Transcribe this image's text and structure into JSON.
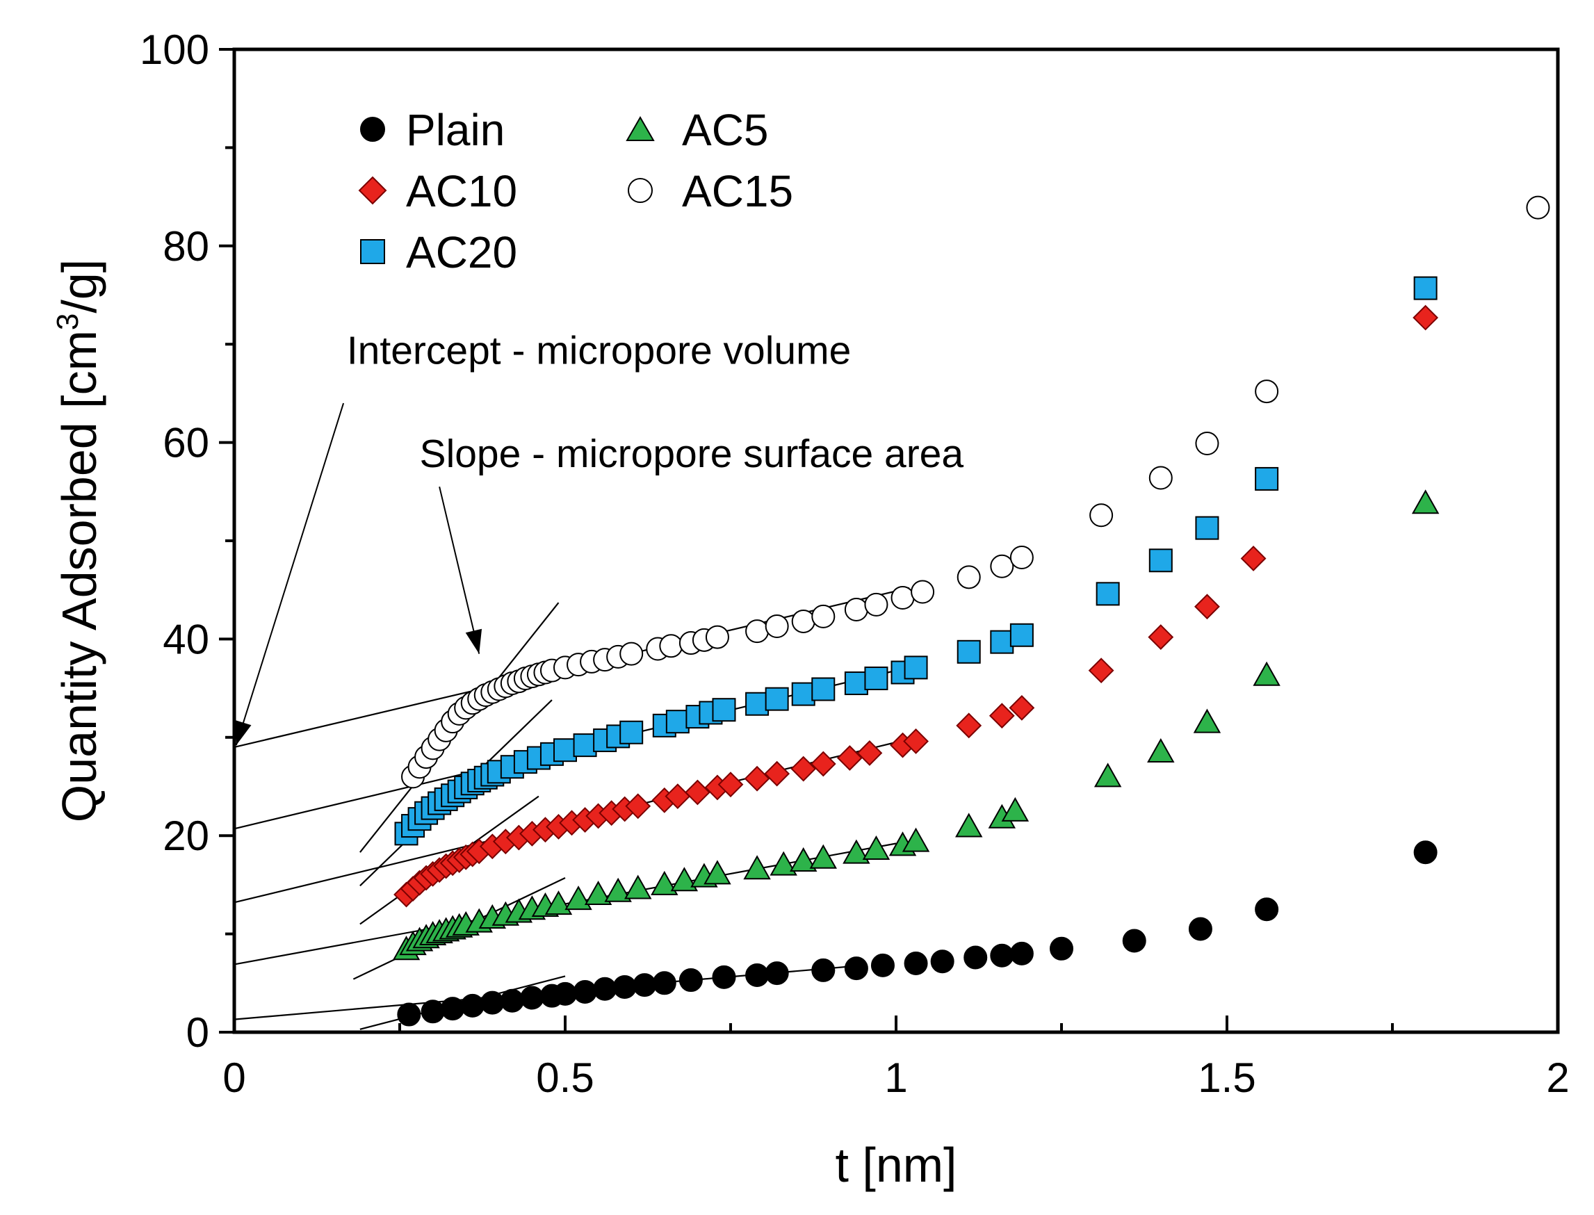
{
  "chart_data": {
    "type": "scatter",
    "title": "",
    "xlabel": "t [nm]",
    "ylabel_main": "Quantity Adsorbed [cm",
    "ylabel_sup": "3",
    "ylabel_tail": "/g]",
    "xlim": [
      0,
      2
    ],
    "ylim": [
      0,
      100
    ],
    "x_ticks": [
      0,
      0.5,
      1,
      1.5,
      2
    ],
    "x_tick_labels": [
      "0",
      "0.5",
      "1",
      "1.5",
      "2"
    ],
    "y_ticks": [
      0,
      20,
      40,
      60,
      80,
      100
    ],
    "y_tick_labels": [
      "0",
      "20",
      "40",
      "60",
      "80",
      "100"
    ],
    "legend_position": "top-left",
    "series": [
      {
        "name": "Plain",
        "marker": "circle",
        "fill": "#000000",
        "stroke": "#000000",
        "x": [
          0.264,
          0.3,
          0.33,
          0.36,
          0.39,
          0.42,
          0.45,
          0.48,
          0.5,
          0.53,
          0.56,
          0.59,
          0.62,
          0.65,
          0.69,
          0.74,
          0.79,
          0.82,
          0.89,
          0.94,
          0.98,
          1.03,
          1.07,
          1.12,
          1.16,
          1.19,
          1.25,
          1.36,
          1.46,
          1.56,
          1.8
        ],
        "y": [
          1.8,
          2.1,
          2.4,
          2.7,
          3.0,
          3.2,
          3.5,
          3.7,
          3.9,
          4.1,
          4.4,
          4.6,
          4.8,
          5.0,
          5.3,
          5.6,
          5.8,
          6.0,
          6.3,
          6.5,
          6.8,
          7.0,
          7.2,
          7.6,
          7.8,
          8.0,
          8.5,
          9.3,
          10.5,
          12.5,
          18.3
        ]
      },
      {
        "name": "AC5",
        "marker": "triangle",
        "fill": "#2db34a",
        "stroke": "#000000",
        "x": [
          0.26,
          0.27,
          0.28,
          0.29,
          0.3,
          0.31,
          0.32,
          0.33,
          0.34,
          0.35,
          0.37,
          0.39,
          0.41,
          0.43,
          0.45,
          0.47,
          0.49,
          0.52,
          0.55,
          0.58,
          0.61,
          0.65,
          0.68,
          0.71,
          0.73,
          0.79,
          0.83,
          0.86,
          0.89,
          0.94,
          0.97,
          1.01,
          1.03,
          1.11,
          1.16,
          1.18,
          1.32,
          1.4,
          1.47,
          1.56,
          1.8
        ],
        "y": [
          8.4,
          8.9,
          9.3,
          9.6,
          9.9,
          10.1,
          10.3,
          10.5,
          10.7,
          10.9,
          11.2,
          11.6,
          11.9,
          12.2,
          12.5,
          12.8,
          13.0,
          13.5,
          14.0,
          14.3,
          14.6,
          15.0,
          15.4,
          15.8,
          16.1,
          16.6,
          17.0,
          17.4,
          17.7,
          18.2,
          18.6,
          19.0,
          19.4,
          20.9,
          21.8,
          22.5,
          26.0,
          28.5,
          31.5,
          36.3,
          53.8
        ]
      },
      {
        "name": "AC10",
        "marker": "diamond",
        "fill": "#e8231d",
        "stroke": "#7a0000",
        "x": [
          0.26,
          0.27,
          0.28,
          0.29,
          0.3,
          0.31,
          0.32,
          0.33,
          0.34,
          0.35,
          0.36,
          0.37,
          0.39,
          0.41,
          0.43,
          0.45,
          0.47,
          0.49,
          0.51,
          0.53,
          0.55,
          0.57,
          0.59,
          0.61,
          0.65,
          0.67,
          0.7,
          0.73,
          0.75,
          0.79,
          0.82,
          0.86,
          0.89,
          0.93,
          0.96,
          1.01,
          1.03,
          1.11,
          1.16,
          1.19,
          1.31,
          1.4,
          1.47,
          1.54,
          1.8
        ],
        "y": [
          14.0,
          14.6,
          15.2,
          15.7,
          16.1,
          16.5,
          16.9,
          17.2,
          17.5,
          17.8,
          18.1,
          18.4,
          18.9,
          19.4,
          19.8,
          20.2,
          20.6,
          20.9,
          21.3,
          21.6,
          22.0,
          22.3,
          22.7,
          23.0,
          23.6,
          24.0,
          24.4,
          24.9,
          25.2,
          25.8,
          26.3,
          26.8,
          27.3,
          27.9,
          28.4,
          29.2,
          29.6,
          31.2,
          32.2,
          33.0,
          36.8,
          40.2,
          43.3,
          48.2,
          72.7
        ]
      },
      {
        "name": "AC20",
        "marker": "square",
        "fill": "#1fa8e8",
        "stroke": "#000000",
        "x": [
          0.26,
          0.27,
          0.28,
          0.29,
          0.3,
          0.31,
          0.32,
          0.33,
          0.34,
          0.35,
          0.36,
          0.37,
          0.38,
          0.39,
          0.4,
          0.42,
          0.44,
          0.46,
          0.48,
          0.5,
          0.53,
          0.56,
          0.58,
          0.6,
          0.65,
          0.67,
          0.7,
          0.72,
          0.74,
          0.79,
          0.82,
          0.86,
          0.89,
          0.94,
          0.97,
          1.01,
          1.03,
          1.11,
          1.16,
          1.19,
          1.32,
          1.4,
          1.47,
          1.56,
          1.8
        ],
        "y": [
          20.2,
          21.0,
          21.7,
          22.3,
          22.8,
          23.3,
          23.7,
          24.1,
          24.5,
          24.9,
          25.3,
          25.6,
          25.9,
          26.2,
          26.5,
          27.0,
          27.5,
          27.9,
          28.3,
          28.7,
          29.2,
          29.7,
          30.1,
          30.5,
          31.2,
          31.6,
          32.1,
          32.5,
          32.8,
          33.4,
          33.9,
          34.4,
          34.9,
          35.5,
          36.0,
          36.6,
          37.1,
          38.7,
          39.7,
          40.4,
          44.6,
          48.0,
          51.3,
          56.3,
          75.7
        ]
      },
      {
        "name": "AC15",
        "marker": "open-circle",
        "fill": "#ffffff",
        "stroke": "#000000",
        "x": [
          0.27,
          0.28,
          0.29,
          0.3,
          0.31,
          0.32,
          0.33,
          0.34,
          0.35,
          0.36,
          0.37,
          0.38,
          0.39,
          0.4,
          0.41,
          0.42,
          0.43,
          0.44,
          0.45,
          0.46,
          0.47,
          0.48,
          0.5,
          0.52,
          0.54,
          0.56,
          0.58,
          0.6,
          0.64,
          0.66,
          0.69,
          0.71,
          0.73,
          0.79,
          0.82,
          0.86,
          0.89,
          0.94,
          0.97,
          1.01,
          1.04,
          1.11,
          1.16,
          1.19,
          1.31,
          1.4,
          1.47,
          1.56,
          1.97
        ],
        "y": [
          26.0,
          27.0,
          28.0,
          28.9,
          29.8,
          30.7,
          31.6,
          32.4,
          33.0,
          33.5,
          33.9,
          34.3,
          34.6,
          34.9,
          35.2,
          35.5,
          35.7,
          36.0,
          36.2,
          36.4,
          36.6,
          36.8,
          37.1,
          37.4,
          37.7,
          37.9,
          38.2,
          38.5,
          39.0,
          39.3,
          39.6,
          39.9,
          40.2,
          40.8,
          41.3,
          41.8,
          42.3,
          43.0,
          43.5,
          44.2,
          44.8,
          46.3,
          47.4,
          48.3,
          52.6,
          56.4,
          59.9,
          65.2,
          83.9
        ]
      }
    ],
    "fit_lines": [
      {
        "name": "AC15 linear fit",
        "x": [
          0,
          1.02
        ],
        "y": [
          29.0,
          45.2
        ]
      },
      {
        "name": "AC20 linear fit",
        "x": [
          0,
          1.0
        ],
        "y": [
          20.7,
          36.8
        ]
      },
      {
        "name": "AC10 linear fit",
        "x": [
          0,
          1.0
        ],
        "y": [
          13.2,
          29.5
        ]
      },
      {
        "name": "AC5 linear fit",
        "x": [
          0,
          1.0
        ],
        "y": [
          6.9,
          19.2
        ]
      },
      {
        "name": "Plain linear fit",
        "x": [
          0,
          0.95
        ],
        "y": [
          1.3,
          6.8
        ]
      },
      {
        "name": "AC15 tangent",
        "x": [
          0.19,
          0.49
        ],
        "y": [
          18.3,
          43.7
        ]
      },
      {
        "name": "AC20 tangent",
        "x": [
          0.19,
          0.48
        ],
        "y": [
          14.9,
          33.8
        ]
      },
      {
        "name": "AC10 tangent",
        "x": [
          0.19,
          0.46
        ],
        "y": [
          11.0,
          24.0
        ]
      },
      {
        "name": "AC5 tangent",
        "x": [
          0.18,
          0.5
        ],
        "y": [
          5.4,
          15.7
        ]
      },
      {
        "name": "Plain tangent",
        "x": [
          0.19,
          0.5
        ],
        "y": [
          0.3,
          5.7
        ]
      }
    ],
    "annotations": [
      {
        "text": "Intercept - micropore volume",
        "text_anchor": [
          0.17,
          68
        ],
        "arrow_from": [
          0.165,
          64.0
        ],
        "arrow_to": [
          0.003,
          29.2
        ]
      },
      {
        "text": "Slope - micropore surface area",
        "text_anchor": [
          0.28,
          57.5
        ],
        "arrow_from": [
          0.31,
          55.5
        ],
        "arrow_to": [
          0.37,
          38.5
        ]
      }
    ]
  }
}
